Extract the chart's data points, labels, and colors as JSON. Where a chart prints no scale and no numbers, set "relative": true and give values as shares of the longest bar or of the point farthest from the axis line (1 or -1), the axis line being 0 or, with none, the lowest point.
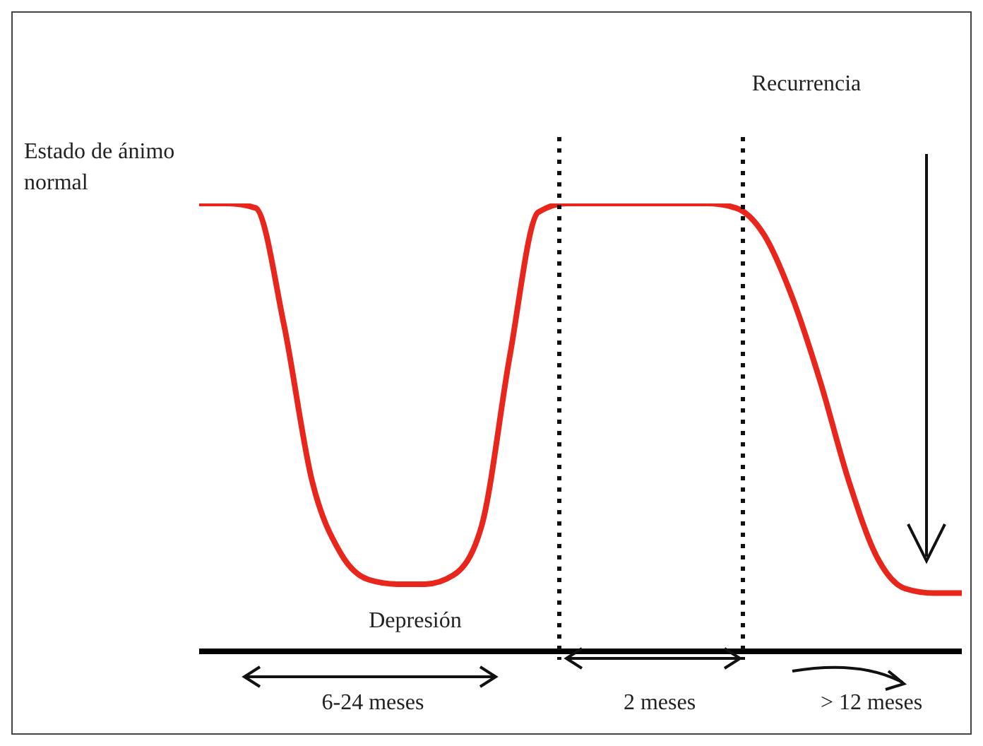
{
  "chart_data": {
    "type": "line",
    "relative": true,
    "categories": [
      null,
      null,
      null,
      null,
      null,
      null,
      null,
      null,
      null,
      null,
      null,
      null,
      null,
      null,
      null,
      null,
      null,
      null,
      null,
      null,
      null,
      null,
      null,
      null,
      null,
      null,
      null,
      null
    ],
    "series": [
      {
        "color": "#e8261c",
        "values": [
          1.0,
          1.0,
          0.99,
          0.73,
          0.38,
          0.22,
          0.16,
          0.15,
          0.15,
          0.17,
          0.28,
          0.66,
          0.98,
          1.0,
          1.0,
          1.0,
          1.0,
          1.0,
          1.0,
          0.99,
          0.93,
          0.79,
          0.6,
          0.38,
          0.21,
          0.14,
          0.13,
          0.13
        ]
      }
    ],
    "marker": "none",
    "line_style": "solid",
    "grid": false,
    "legend": false,
    "annotations": [
      "Estado de ánimo normal",
      "Recurrencia",
      "Depresión",
      "6-24 meses",
      "2 meses",
      "> 12 meses"
    ]
  }
}
